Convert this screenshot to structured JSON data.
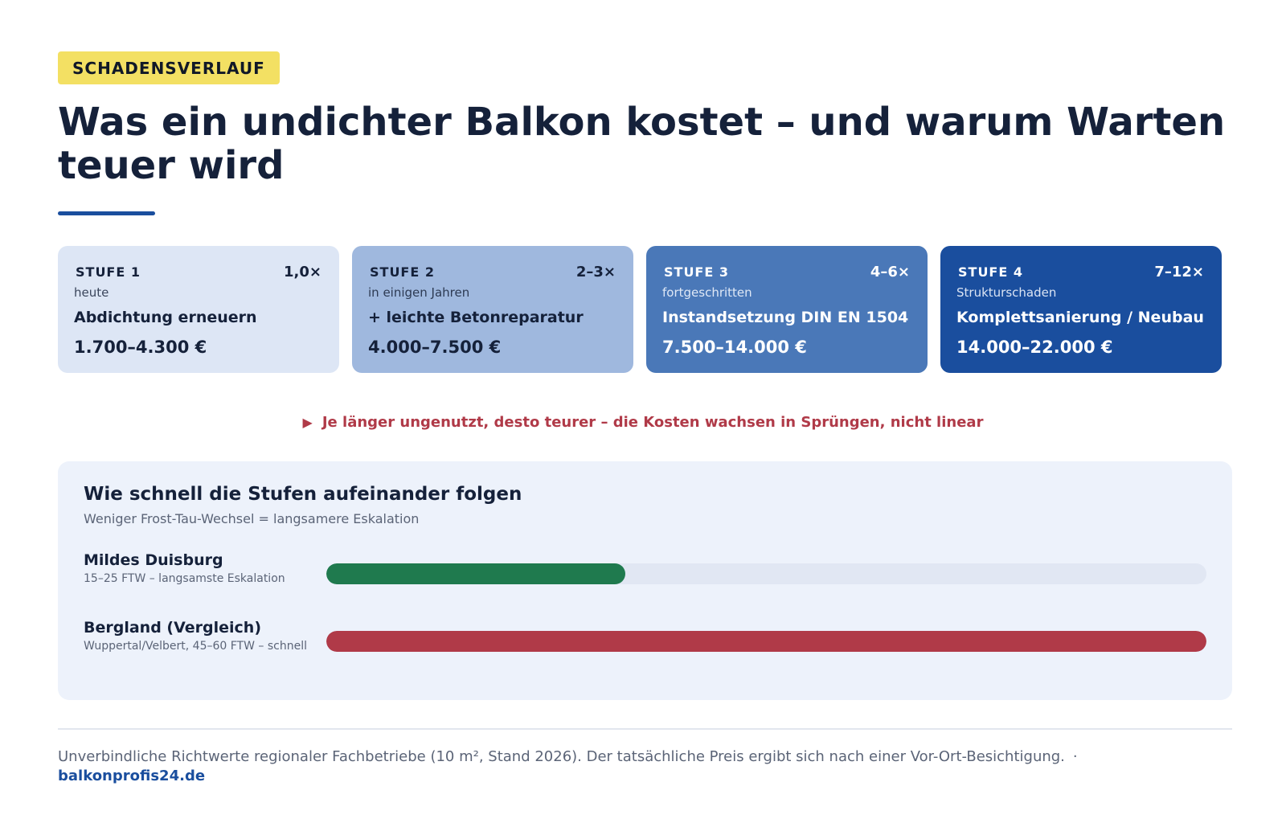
{
  "eyebrow": "SCHADENSVERLAUF",
  "title": "Was ein undichter Balkon kostet – und warum Warten teuer wird",
  "stages": [
    {
      "label": "STUFE 1",
      "multiplier": "1,0×",
      "when": "heute",
      "action": "Abdichtung erneuern",
      "price": "1.700–4.300 €",
      "color": "#dde6f5"
    },
    {
      "label": "STUFE 2",
      "multiplier": "2–3×",
      "when": "in einigen Jahren",
      "action": "+ leichte Betonreparatur",
      "price": "4.000–7.500 €",
      "color": "#9fb8de"
    },
    {
      "label": "STUFE 3",
      "multiplier": "4–6×",
      "when": "fortgeschritten",
      "action": "Instandsetzung DIN EN 1504",
      "price": "7.500–14.000 €",
      "color": "#4a78b8"
    },
    {
      "label": "STUFE 4",
      "multiplier": "7–12×",
      "when": "Strukturschaden",
      "action": "Komplettsanierung / Neubau",
      "price": "14.000–22.000 €",
      "color": "#1a4e9e"
    }
  ],
  "warning": {
    "icon": "triangle-right-icon",
    "text": "Je länger ungenutzt, desto teurer – die Kosten wachsen in Sprüngen, nicht linear",
    "color": "#b03a48"
  },
  "speed": {
    "title": "Wie schnell die Stufen aufeinander folgen",
    "subtitle": "Weniger Frost-Tau-Wechsel = langsamere Eskalation",
    "rows": [
      {
        "name": "Mildes Duisburg",
        "desc": "15–25 FTW – langsamste Eskalation",
        "fill": 0.34,
        "color": "#1f7a4e"
      },
      {
        "name": "Bergland (Vergleich)",
        "desc": "Wuppertal/Velbert, 45–60 FTW – schnell",
        "fill": 1.0,
        "color": "#b03a48"
      }
    ]
  },
  "footer": {
    "note": "Unverbindliche Richtwerte regionaler Fachbetriebe (10 m², Stand 2026). Der tatsächliche Preis ergibt sich nach einer Vor-Ort-Besichtigung.",
    "separator": "·",
    "brand": "balkonprofis24.de"
  }
}
